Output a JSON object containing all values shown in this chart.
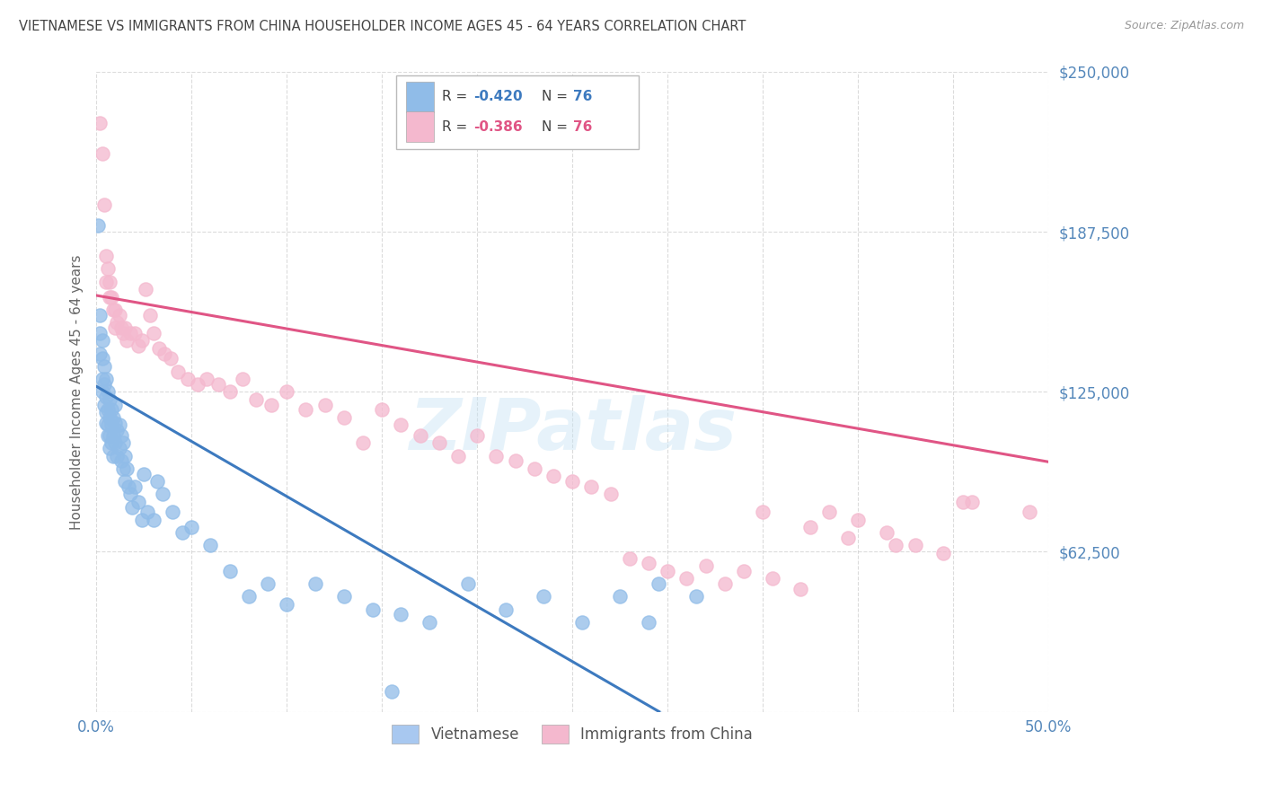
{
  "title": "VIETNAMESE VS IMMIGRANTS FROM CHINA HOUSEHOLDER INCOME AGES 45 - 64 YEARS CORRELATION CHART",
  "source": "Source: ZipAtlas.com",
  "ylabel": "Householder Income Ages 45 - 64 years",
  "xlim": [
    0.0,
    0.5
  ],
  "ylim": [
    0,
    250000
  ],
  "yticks": [
    0,
    62500,
    125000,
    187500,
    250000
  ],
  "ytick_labels": [
    "",
    "$62,500",
    "$125,000",
    "$187,500",
    "$250,000"
  ],
  "xtick_labels": [
    "0.0%",
    "",
    "",
    "",
    "",
    "",
    "",
    "",
    "",
    "",
    "50.0%"
  ],
  "bottom_legend": [
    {
      "label": "Vietnamese",
      "color": "#a8c8f0"
    },
    {
      "label": "Immigrants from China",
      "color": "#f4b8ce"
    }
  ],
  "watermark": "ZIPatlas",
  "blue_color": "#90bce8",
  "pink_color": "#f4b8ce",
  "blue_line_color": "#3d7abf",
  "pink_line_color": "#e05585",
  "title_color": "#444444",
  "axis_label_color": "#666666",
  "tick_color": "#5588bb",
  "background_color": "#ffffff",
  "grid_color": "#cccccc",
  "R_blue": -0.42,
  "R_pink": -0.386,
  "N": 76,
  "blue_scatter_x": [
    0.001,
    0.002,
    0.002,
    0.002,
    0.003,
    0.003,
    0.003,
    0.003,
    0.004,
    0.004,
    0.004,
    0.005,
    0.005,
    0.005,
    0.005,
    0.006,
    0.006,
    0.006,
    0.006,
    0.007,
    0.007,
    0.007,
    0.007,
    0.008,
    0.008,
    0.008,
    0.009,
    0.009,
    0.009,
    0.01,
    0.01,
    0.01,
    0.011,
    0.011,
    0.012,
    0.012,
    0.013,
    0.013,
    0.014,
    0.014,
    0.015,
    0.015,
    0.016,
    0.017,
    0.018,
    0.019,
    0.02,
    0.022,
    0.024,
    0.025,
    0.027,
    0.03,
    0.032,
    0.035,
    0.04,
    0.045,
    0.05,
    0.06,
    0.07,
    0.08,
    0.09,
    0.1,
    0.115,
    0.13,
    0.145,
    0.16,
    0.175,
    0.195,
    0.215,
    0.235,
    0.255,
    0.275,
    0.295,
    0.315,
    0.155,
    0.29
  ],
  "blue_scatter_y": [
    190000,
    155000,
    148000,
    140000,
    145000,
    138000,
    130000,
    125000,
    135000,
    128000,
    120000,
    130000,
    123000,
    117000,
    113000,
    125000,
    118000,
    112000,
    108000,
    122000,
    115000,
    108000,
    103000,
    118000,
    112000,
    105000,
    115000,
    108000,
    100000,
    120000,
    113000,
    105000,
    110000,
    100000,
    112000,
    103000,
    108000,
    98000,
    105000,
    95000,
    100000,
    90000,
    95000,
    88000,
    85000,
    80000,
    88000,
    82000,
    75000,
    93000,
    78000,
    75000,
    90000,
    85000,
    78000,
    70000,
    72000,
    65000,
    55000,
    45000,
    50000,
    42000,
    50000,
    45000,
    40000,
    38000,
    35000,
    50000,
    40000,
    45000,
    35000,
    45000,
    50000,
    45000,
    8000,
    35000
  ],
  "pink_scatter_x": [
    0.002,
    0.003,
    0.004,
    0.005,
    0.005,
    0.006,
    0.007,
    0.007,
    0.008,
    0.009,
    0.01,
    0.01,
    0.011,
    0.012,
    0.013,
    0.014,
    0.015,
    0.016,
    0.018,
    0.02,
    0.022,
    0.024,
    0.026,
    0.028,
    0.03,
    0.033,
    0.036,
    0.039,
    0.043,
    0.048,
    0.053,
    0.058,
    0.064,
    0.07,
    0.077,
    0.084,
    0.092,
    0.1,
    0.11,
    0.12,
    0.13,
    0.14,
    0.15,
    0.16,
    0.17,
    0.18,
    0.19,
    0.2,
    0.21,
    0.22,
    0.23,
    0.24,
    0.25,
    0.26,
    0.27,
    0.28,
    0.29,
    0.3,
    0.31,
    0.32,
    0.33,
    0.34,
    0.355,
    0.37,
    0.385,
    0.4,
    0.415,
    0.43,
    0.445,
    0.46,
    0.35,
    0.375,
    0.395,
    0.42,
    0.455,
    0.49
  ],
  "pink_scatter_y": [
    230000,
    218000,
    198000,
    178000,
    168000,
    173000,
    168000,
    162000,
    162000,
    157000,
    157000,
    150000,
    152000,
    155000,
    150000,
    148000,
    150000,
    145000,
    148000,
    148000,
    143000,
    145000,
    165000,
    155000,
    148000,
    142000,
    140000,
    138000,
    133000,
    130000,
    128000,
    130000,
    128000,
    125000,
    130000,
    122000,
    120000,
    125000,
    118000,
    120000,
    115000,
    105000,
    118000,
    112000,
    108000,
    105000,
    100000,
    108000,
    100000,
    98000,
    95000,
    92000,
    90000,
    88000,
    85000,
    60000,
    58000,
    55000,
    52000,
    57000,
    50000,
    55000,
    52000,
    48000,
    78000,
    75000,
    70000,
    65000,
    62000,
    82000,
    78000,
    72000,
    68000,
    65000,
    82000,
    78000
  ]
}
